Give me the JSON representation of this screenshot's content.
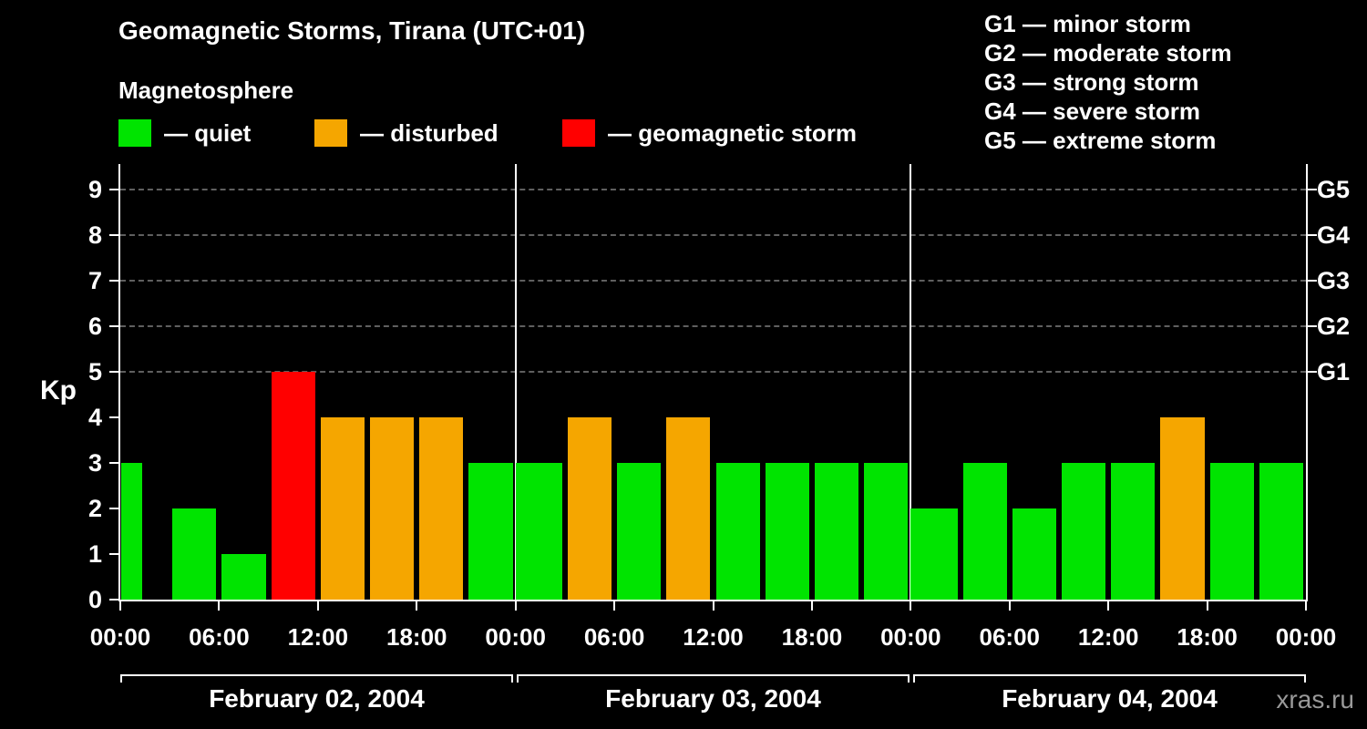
{
  "header": {
    "title": "Geomagnetic Storms, Tirana (UTC+01)",
    "subtitle": "Magnetosphere"
  },
  "legend": {
    "items": [
      {
        "key": "quiet",
        "label": "— quiet"
      },
      {
        "key": "disturbed",
        "label": "— disturbed"
      },
      {
        "key": "storm",
        "label": "— geomagnetic storm"
      }
    ]
  },
  "storm_scale": {
    "items": [
      "G1 — minor storm",
      "G2 — moderate storm",
      "G3 — strong storm",
      "G4 — severe storm",
      "G5 — extreme storm"
    ]
  },
  "axis": {
    "y_label": "Kp",
    "y_ticks": [
      0,
      1,
      2,
      3,
      4,
      5,
      6,
      7,
      8,
      9
    ],
    "g_ticks": [
      {
        "label": "G1",
        "kp": 5
      },
      {
        "label": "G2",
        "kp": 6
      },
      {
        "label": "G3",
        "kp": 7
      },
      {
        "label": "G4",
        "kp": 8
      },
      {
        "label": "G5",
        "kp": 9
      }
    ],
    "x_tick_labels": [
      "00:00",
      "06:00",
      "12:00",
      "18:00",
      "00:00",
      "06:00",
      "12:00",
      "18:00",
      "00:00",
      "06:00",
      "12:00",
      "18:00",
      "00:00"
    ]
  },
  "colors": {
    "quiet": "#00e400",
    "disturbed": "#f5a600",
    "storm": "#ff0000",
    "grid": "#5f5f5f",
    "axis": "#ffffff",
    "watermark": "#999999"
  },
  "watermark": "xras.ru",
  "chart_data": {
    "type": "bar",
    "title": "Geomagnetic Storms, Tirana (UTC+01)",
    "ylabel": "Kp",
    "ylim": [
      0,
      9
    ],
    "interval_hours": 3,
    "bars_per_day": 8,
    "grid_levels": [
      5,
      6,
      7,
      8,
      9
    ],
    "legend_position": "top",
    "days": [
      {
        "label": "February 02, 2004",
        "values": [
          3,
          2,
          1,
          5,
          4,
          4,
          4,
          3
        ]
      },
      {
        "label": "February 03, 2004",
        "values": [
          3,
          4,
          3,
          4,
          3,
          3,
          3,
          3
        ]
      },
      {
        "label": "February 04, 2004",
        "values": [
          2,
          3,
          2,
          3,
          3,
          4,
          3,
          3
        ]
      }
    ],
    "status_by_kp": {
      "0-3": "quiet",
      "4": "disturbed",
      "5-9": "storm"
    }
  }
}
